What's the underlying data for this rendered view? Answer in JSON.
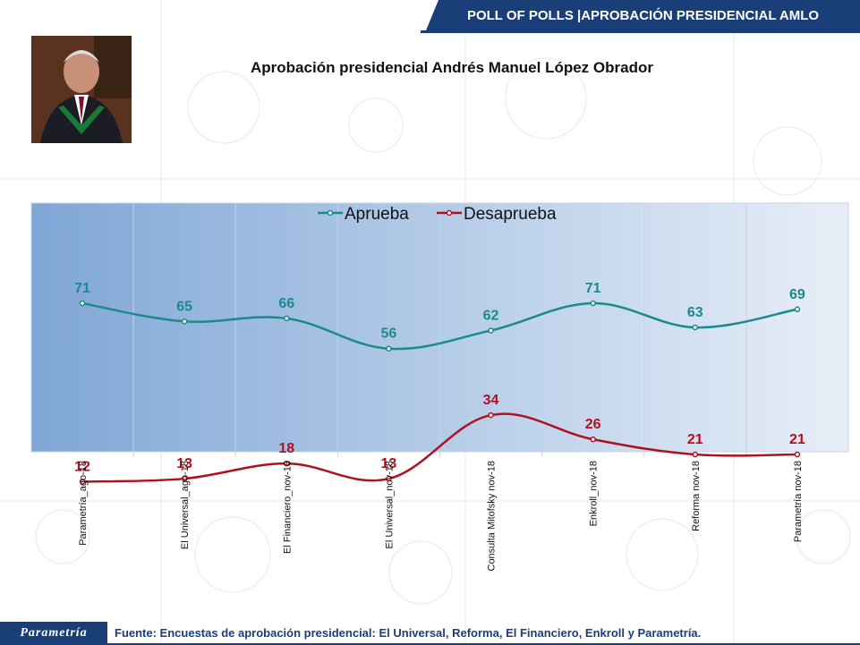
{
  "header": {
    "title": "POLL OF POLLS |APROBACIÓN PRESIDENCIAL AMLO"
  },
  "logo": {
    "text": "Parametría"
  },
  "footer": {
    "source": "Fuente: Encuestas de aprobación presidencial: El Universal, Reforma, El Financiero, Enkroll y Parametría."
  },
  "colors": {
    "aprueba": "#1a8a8a",
    "desaprueba": "#b01020",
    "header": "#1a3f78"
  },
  "chart_data": {
    "type": "line",
    "title": "Aprobación presidencial Andrés Manuel López Obrador",
    "categories": [
      "Parametría_ago-18",
      "El Universal_ago-18",
      "El Financiero_nov-18",
      "El Universal_nov-18",
      "Consulta Mitofsky nov-18",
      "Enkroll_nov-18",
      "Reforma nov-18",
      "Parametría nov-18"
    ],
    "series": [
      {
        "name": "Aprueba",
        "values": [
          71,
          65,
          66,
          56,
          62,
          71,
          63,
          69
        ]
      },
      {
        "name": "Desaprueba",
        "values": [
          12,
          13,
          18,
          13,
          34,
          26,
          21,
          21
        ]
      }
    ],
    "ylim": [
      0,
      100
    ],
    "legend": "top-center",
    "smooth": true
  }
}
